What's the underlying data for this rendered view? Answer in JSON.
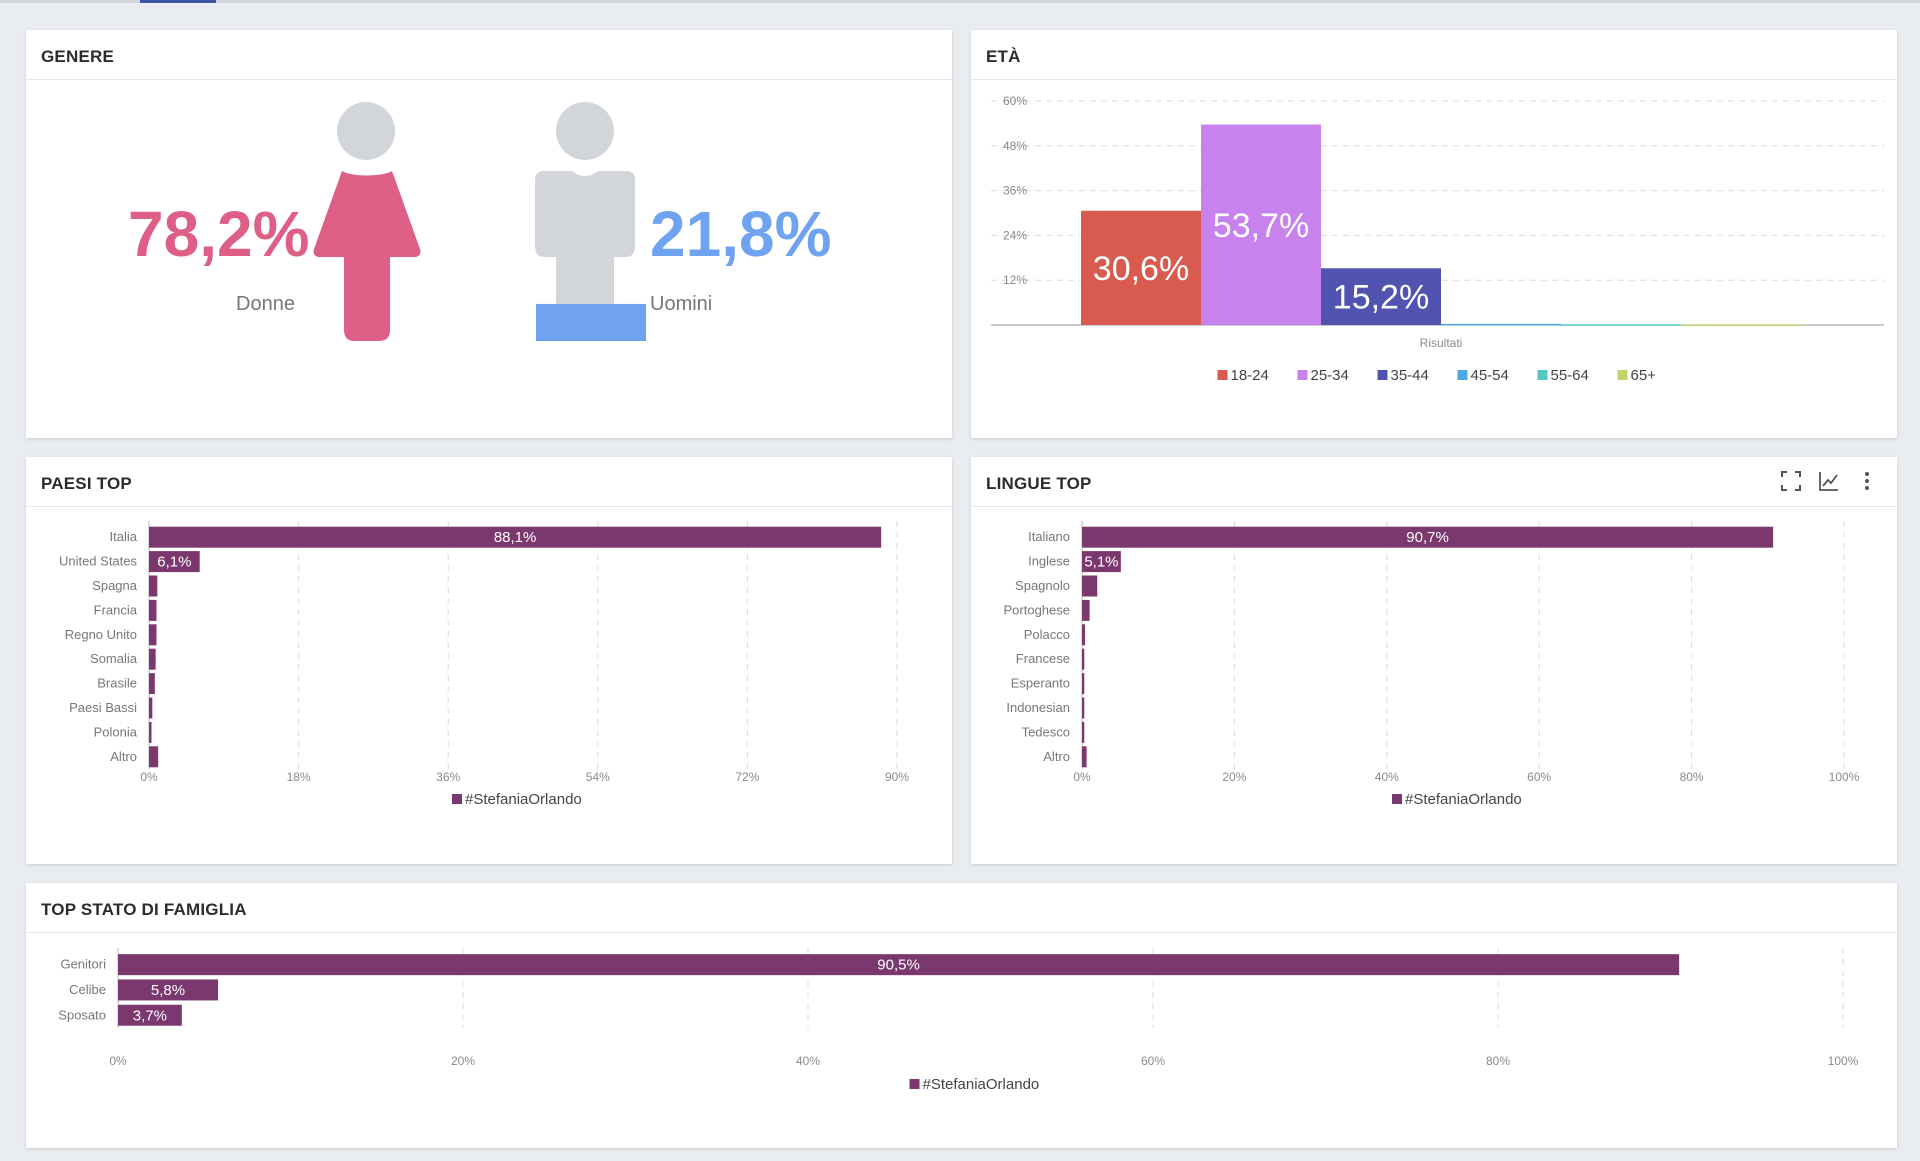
{
  "genere": {
    "title": "GENERE",
    "donne": {
      "pct": "78,2%",
      "label": "Donne",
      "color": "#de5f85"
    },
    "uomini": {
      "pct": "21,8%",
      "label": "Uomini",
      "color": "#6fa3ef"
    },
    "icon_gray": "#d2d6da"
  },
  "eta": {
    "title": "ETÀ"
  },
  "paesi": {
    "title": "PAESI TOP"
  },
  "lingue": {
    "title": "LINGUE TOP"
  },
  "famiglia": {
    "title": "TOP STATO DI FAMIGLIA"
  },
  "colors": {
    "bar": "#7b386e",
    "grid": "#dcdcdc",
    "tick": "#8a8a8a"
  },
  "chart_data": [
    {
      "id": "genere",
      "type": "pie",
      "title": "GENERE",
      "categories": [
        "Donne",
        "Uomini"
      ],
      "values": [
        78.2,
        21.8
      ],
      "value_labels": [
        "78,2%",
        "21,8%"
      ]
    },
    {
      "id": "eta",
      "type": "bar",
      "title": "ETÀ",
      "xlabel": "Risultati",
      "ylim": [
        0,
        60
      ],
      "yticks": [
        12,
        24,
        36,
        48,
        60
      ],
      "ytick_labels": [
        "12%",
        "24%",
        "36%",
        "48%",
        "60%"
      ],
      "grid": true,
      "legend": "bottom",
      "series": [
        {
          "name": "18-24",
          "value": 30.6,
          "label": "30,6%",
          "color": "#d95a4e"
        },
        {
          "name": "25-34",
          "value": 53.7,
          "label": "53,7%",
          "color": "#c882ee"
        },
        {
          "name": "35-44",
          "value": 15.2,
          "label": "15,2%",
          "color": "#5054b0"
        },
        {
          "name": "45-54",
          "value": 0.3,
          "label": "",
          "color": "#4ea8e6"
        },
        {
          "name": "55-64",
          "value": 0.2,
          "label": "",
          "color": "#55c8c0"
        },
        {
          "name": "65+",
          "value": 0.1,
          "label": "",
          "color": "#c1d36a"
        }
      ]
    },
    {
      "id": "paesi",
      "type": "bar",
      "orientation": "horizontal",
      "title": "PAESI TOP",
      "categories": [
        "Italia",
        "United States",
        "Spagna",
        "Francia",
        "Regno Unito",
        "Somalia",
        "Brasile",
        "Paesi Bassi",
        "Polonia",
        "Altro"
      ],
      "values": [
        88.1,
        6.1,
        1.0,
        0.9,
        0.9,
        0.8,
        0.7,
        0.4,
        0.3,
        1.1
      ],
      "value_labels": [
        "88,1%",
        "6,1%",
        "",
        "",
        "",
        "",
        "",
        "",
        "",
        ""
      ],
      "xlim": [
        0,
        90
      ],
      "xticks": [
        0,
        18,
        36,
        54,
        72,
        90
      ],
      "xtick_labels": [
        "0%",
        "18%",
        "36%",
        "54%",
        "72%",
        "90%"
      ],
      "grid": true,
      "legend": "bottom",
      "series_name": "#StefaniaOrlando"
    },
    {
      "id": "lingue",
      "type": "bar",
      "orientation": "horizontal",
      "title": "LINGUE TOP",
      "categories": [
        "Italiano",
        "Inglese",
        "Spagnolo",
        "Portoghese",
        "Polacco",
        "Francese",
        "Esperanto",
        "Indonesian",
        "Tedesco",
        "Altro"
      ],
      "values": [
        90.7,
        5.1,
        2.0,
        1.0,
        0.4,
        0.3,
        0.3,
        0.3,
        0.3,
        0.6
      ],
      "value_labels": [
        "90,7%",
        "5,1%",
        "",
        "",
        "",
        "",
        "",
        "",
        "",
        ""
      ],
      "xlim": [
        0,
        100
      ],
      "xticks": [
        0,
        20,
        40,
        60,
        80,
        100
      ],
      "xtick_labels": [
        "0%",
        "20%",
        "40%",
        "60%",
        "80%",
        "100%"
      ],
      "grid": true,
      "legend": "bottom",
      "series_name": "#StefaniaOrlando"
    },
    {
      "id": "famiglia",
      "type": "bar",
      "orientation": "horizontal",
      "title": "TOP STATO DI FAMIGLIA",
      "categories": [
        "Genitori",
        "Celibe",
        "Sposato"
      ],
      "values": [
        90.5,
        5.8,
        3.7
      ],
      "value_labels": [
        "90,5%",
        "5,8%",
        "3,7%"
      ],
      "xlim": [
        0,
        100
      ],
      "xticks": [
        0,
        20,
        40,
        60,
        80,
        100
      ],
      "xtick_labels": [
        "0%",
        "20%",
        "40%",
        "60%",
        "80%",
        "100%"
      ],
      "grid": true,
      "legend": "bottom",
      "series_name": "#StefaniaOrlando"
    }
  ]
}
